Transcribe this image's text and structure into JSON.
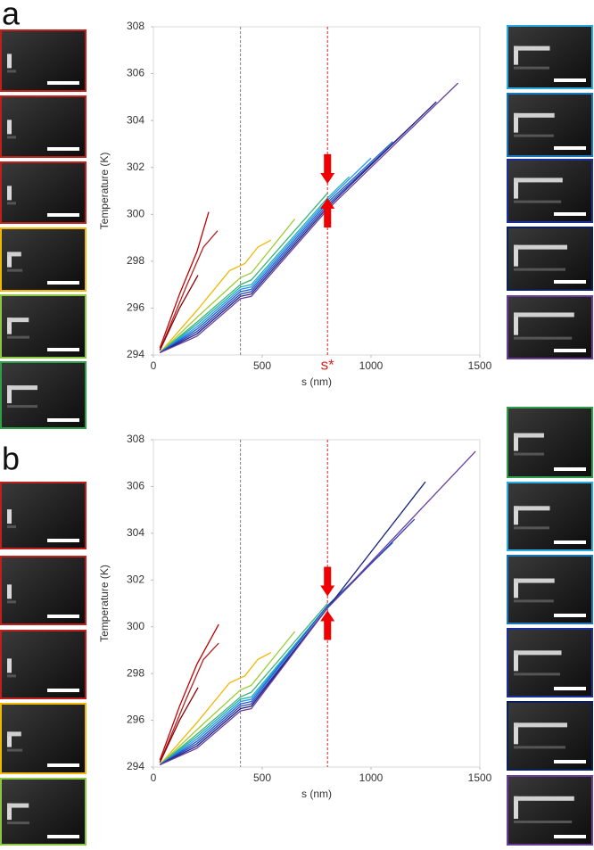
{
  "chart_data": [
    {
      "type": "line",
      "panel_label": "a",
      "xlabel": "s (nm)",
      "ylabel": "Temperature (K)",
      "xlim": [
        0,
        1500
      ],
      "ylim": [
        294,
        308
      ],
      "xticks": [
        0,
        500,
        1000,
        1500
      ],
      "yticks": [
        294,
        296,
        298,
        300,
        302,
        304,
        306,
        308
      ],
      "reference_lines": [
        {
          "x": 400,
          "color": "#808080"
        },
        {
          "x": 800,
          "color": "#e02020"
        }
      ],
      "annotations": [
        {
          "text": "s*",
          "x": 800,
          "color": "#e02020"
        }
      ],
      "thumbnails": {
        "left": [
          "#c0201c",
          "#c0201c",
          "#c0201c",
          "#f2b705",
          "#8dc63f",
          "#2e9e48"
        ],
        "right": [
          "#29abe2",
          "#1b75bb",
          "#1a2f9e",
          "#0b1f5c",
          "#6a3d9a"
        ]
      },
      "series": [
        {
          "color": "#c00000",
          "x": [
            30,
            120,
            200,
            254
          ],
          "values": [
            294.3,
            296.6,
            298.4,
            300.1
          ]
        },
        {
          "color": "#b22222",
          "x": [
            30,
            150,
            230,
            295
          ],
          "values": [
            294.2,
            296.9,
            298.6,
            299.3
          ]
        },
        {
          "color": "#8b0000",
          "x": [
            30,
            120,
            205
          ],
          "values": [
            294.2,
            296.0,
            297.4
          ]
        },
        {
          "color": "#f2b705",
          "x": [
            30,
            200,
            350,
            420,
            480,
            540
          ],
          "values": [
            294.1,
            295.9,
            297.6,
            297.9,
            298.6,
            298.9
          ]
        },
        {
          "color": "#9acd32",
          "x": [
            30,
            200,
            400,
            450,
            650
          ],
          "values": [
            294.1,
            295.6,
            297.3,
            297.5,
            299.8
          ]
        },
        {
          "color": "#3cb371",
          "x": [
            30,
            200,
            400,
            450,
            800
          ],
          "values": [
            294.1,
            295.4,
            297.0,
            297.2,
            300.9
          ]
        },
        {
          "color": "#20b2aa",
          "x": [
            30,
            200,
            400,
            450,
            800,
            900
          ],
          "values": [
            294.1,
            295.3,
            296.9,
            297.0,
            300.7,
            301.6
          ]
        },
        {
          "color": "#1e90ff",
          "x": [
            30,
            200,
            400,
            450,
            800,
            1000
          ],
          "values": [
            294.1,
            295.2,
            296.8,
            296.9,
            300.6,
            302.4
          ]
        },
        {
          "color": "#1f5fc4",
          "x": [
            30,
            200,
            400,
            450,
            800,
            1100
          ],
          "values": [
            294.1,
            295.1,
            296.7,
            296.8,
            300.5,
            303.1
          ]
        },
        {
          "color": "#2a3db8",
          "x": [
            30,
            200,
            400,
            450,
            800,
            1200
          ],
          "values": [
            294.1,
            295.0,
            296.6,
            296.7,
            300.4,
            303.9
          ]
        },
        {
          "color": "#1a237e",
          "x": [
            30,
            200,
            400,
            450,
            800,
            1300
          ],
          "values": [
            294.1,
            294.9,
            296.5,
            296.6,
            300.3,
            304.8
          ]
        },
        {
          "color": "#6a3d9a",
          "x": [
            30,
            200,
            400,
            450,
            800,
            1400
          ],
          "values": [
            294.1,
            294.8,
            296.4,
            296.5,
            300.2,
            305.6
          ]
        }
      ]
    },
    {
      "type": "line",
      "panel_label": "b",
      "xlabel": "s (nm)",
      "ylabel": "Temperature (K)",
      "xlim": [
        0,
        1500
      ],
      "ylim": [
        294,
        308
      ],
      "xticks": [
        0,
        500,
        1000,
        1500
      ],
      "yticks": [
        294,
        296,
        298,
        300,
        302,
        304,
        306,
        308
      ],
      "reference_lines": [
        {
          "x": 400,
          "color": "#808080"
        },
        {
          "x": 800,
          "color": "#e02020"
        }
      ],
      "annotations": [],
      "thumbnails": {
        "left": [
          "#c0201c",
          "#c0201c",
          "#c0201c",
          "#f2b705",
          "#8dc63f"
        ],
        "right": [
          "#2e9e48",
          "#29abe2",
          "#1b75bb",
          "#1a2f9e",
          "#0b1f5c",
          "#6a3d9a"
        ]
      },
      "series": [
        {
          "color": "#c00000",
          "x": [
            30,
            120,
            200,
            300
          ],
          "values": [
            294.3,
            296.6,
            298.4,
            300.1
          ]
        },
        {
          "color": "#b22222",
          "x": [
            30,
            150,
            230,
            300
          ],
          "values": [
            294.2,
            296.9,
            298.6,
            299.3
          ]
        },
        {
          "color": "#8b0000",
          "x": [
            30,
            120,
            205
          ],
          "values": [
            294.2,
            296.0,
            297.4
          ]
        },
        {
          "color": "#f2b705",
          "x": [
            30,
            200,
            350,
            420,
            480,
            540
          ],
          "values": [
            294.1,
            295.9,
            297.6,
            297.9,
            298.6,
            298.9
          ]
        },
        {
          "color": "#9acd32",
          "x": [
            30,
            200,
            400,
            450,
            650
          ],
          "values": [
            294.1,
            295.6,
            297.3,
            297.5,
            299.8
          ]
        },
        {
          "color": "#3cb371",
          "x": [
            30,
            200,
            400,
            450,
            800
          ],
          "values": [
            294.1,
            295.4,
            297.0,
            297.2,
            301.0
          ]
        },
        {
          "color": "#20b2aa",
          "x": [
            30,
            200,
            400,
            450,
            800,
            900
          ],
          "values": [
            294.1,
            295.3,
            296.9,
            297.0,
            300.9,
            301.8
          ]
        },
        {
          "color": "#1e90ff",
          "x": [
            30,
            200,
            400,
            450,
            800,
            1000
          ],
          "values": [
            294.1,
            295.2,
            296.8,
            296.9,
            300.9,
            302.7
          ]
        },
        {
          "color": "#1f5fc4",
          "x": [
            30,
            200,
            400,
            450,
            800,
            1100
          ],
          "values": [
            294.1,
            295.1,
            296.7,
            296.8,
            300.9,
            303.6
          ]
        },
        {
          "color": "#2a3db8",
          "x": [
            30,
            200,
            400,
            450,
            800,
            1200
          ],
          "values": [
            294.1,
            295.0,
            296.6,
            296.7,
            300.8,
            304.6
          ]
        },
        {
          "color": "#1a237e",
          "x": [
            30,
            200,
            400,
            450,
            800,
            1250
          ],
          "values": [
            294.1,
            294.9,
            296.5,
            296.6,
            300.8,
            306.2
          ]
        },
        {
          "color": "#6a3d9a",
          "x": [
            30,
            200,
            400,
            450,
            800,
            1480
          ],
          "values": [
            294.1,
            294.8,
            296.4,
            296.5,
            300.8,
            307.5
          ]
        }
      ]
    }
  ]
}
